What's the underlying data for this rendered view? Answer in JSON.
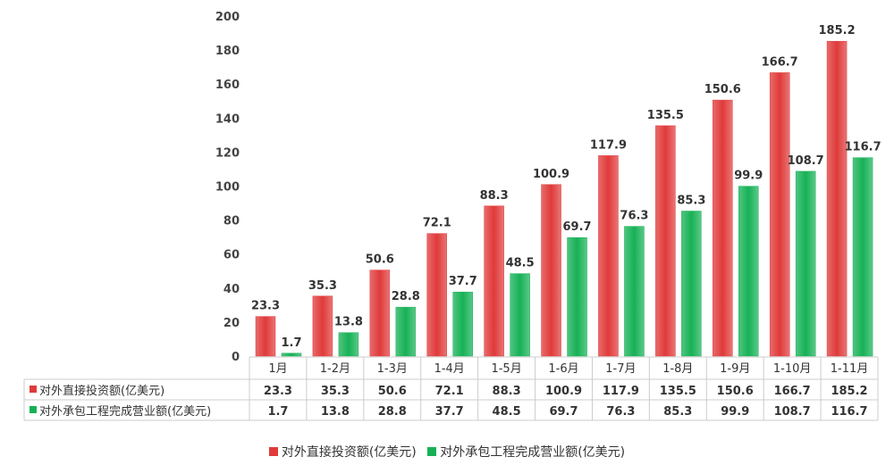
{
  "chart_data": {
    "type": "bar",
    "categories": [
      "1月",
      "1-2月",
      "1-3月",
      "1-4月",
      "1-5月",
      "1-6月",
      "1-7月",
      "1-8月",
      "1-9月",
      "1-10月",
      "1-11月"
    ],
    "series": [
      {
        "name": "对外直接投资额(亿美元)",
        "color": "#e03a3a",
        "values": [
          23.3,
          35.3,
          50.6,
          72.1,
          88.3,
          100.9,
          117.9,
          135.5,
          150.6,
          166.7,
          185.2
        ]
      },
      {
        "name": "对外承包工程完成营业额(亿美元)",
        "color": "#16b156",
        "values": [
          1.7,
          13.8,
          28.8,
          37.7,
          48.5,
          69.7,
          76.3,
          85.3,
          99.9,
          108.7,
          116.7
        ]
      }
    ],
    "ylim": [
      0,
      200
    ],
    "yticks": [
      0,
      20,
      40,
      60,
      80,
      100,
      120,
      140,
      160,
      180,
      200
    ],
    "grid": false,
    "legend": "bottom",
    "data_table": true
  }
}
